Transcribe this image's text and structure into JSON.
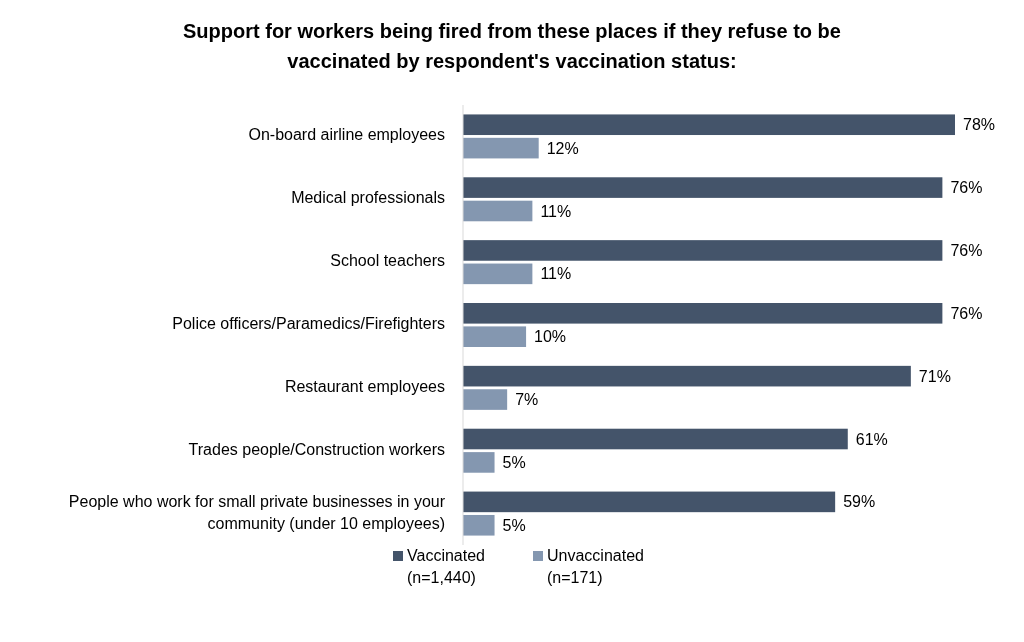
{
  "chart_data": {
    "type": "bar",
    "orientation": "horizontal",
    "title": "Support for workers being fired from these places if they refuse to be vaccinated by respondent's vaccination status:",
    "categories": [
      "On-board airline employees",
      "Medical professionals",
      "School teachers",
      "Police officers/Paramedics/Firefighters",
      "Restaurant employees",
      "Trades people/Construction workers",
      "People who work for small private businesses in your community (under 10 employees)"
    ],
    "series": [
      {
        "name": "Vaccinated (n=1,440)",
        "color": "#44546a",
        "values": [
          78,
          76,
          76,
          76,
          71,
          61,
          59
        ],
        "value_labels": [
          "78%",
          "76%",
          "76%",
          "76%",
          "71%",
          "61%",
          "59%"
        ]
      },
      {
        "name": "Unvaccinated (n=171)",
        "color": "#8497b0",
        "values": [
          12,
          11,
          11,
          10,
          7,
          5,
          5
        ],
        "value_labels": [
          "12%",
          "11%",
          "11%",
          "10%",
          "7%",
          "5%",
          "5%"
        ]
      }
    ],
    "legend": "bottom"
  }
}
